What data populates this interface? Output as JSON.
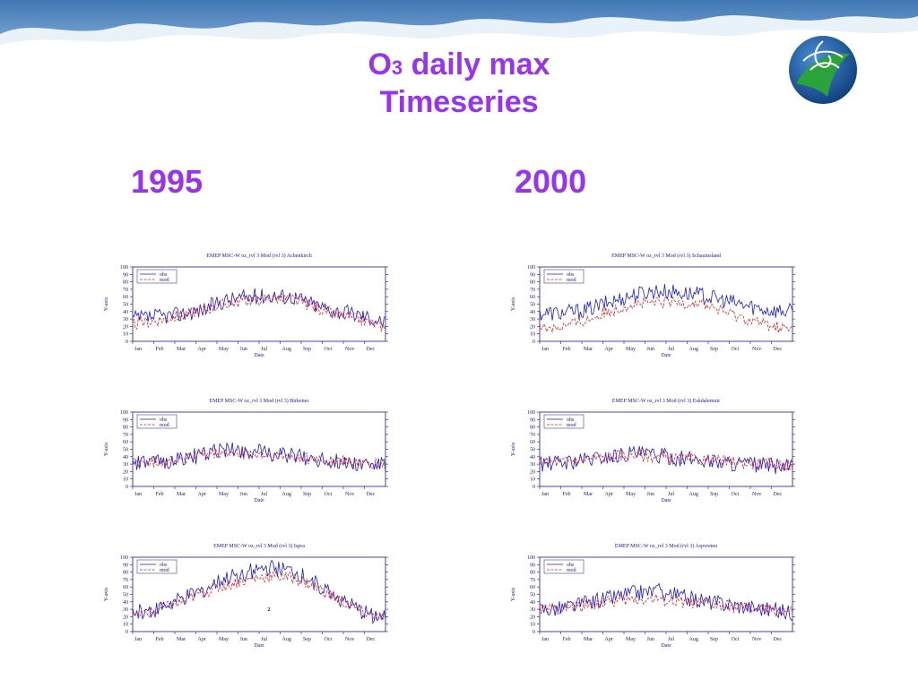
{
  "title": {
    "main": "O",
    "sub": "3",
    "rest": " daily max",
    "line2": "Timeseries"
  },
  "years": {
    "left": "1995",
    "right": "2000"
  },
  "colors": {
    "title": "#9933ee",
    "obs": "#1a1acc",
    "mod": "#dd2222",
    "axis": "#1a1a8c"
  },
  "chart_common": {
    "ylabel": "Y-axis",
    "xlabel": "Date",
    "months": [
      "Jan",
      "Feb",
      "Mar",
      "Apr",
      "May",
      "Jun",
      "Jul",
      "Aug",
      "Sep",
      "Oct",
      "Nov",
      "Dec"
    ],
    "yticks": [
      0,
      10,
      20,
      30,
      40,
      50,
      60,
      70,
      80,
      90,
      100
    ],
    "legend": [
      "obs",
      "mod"
    ]
  },
  "chart_data": [
    {
      "type": "line",
      "title": "EMEP MSC-W oz_rvl 3 Mod (rvl 3) Achenkirch",
      "xlabel": "Date",
      "ylabel": "Y-axis",
      "ylim": [
        0,
        100
      ],
      "x": [
        "Jan",
        "Feb",
        "Mar",
        "Apr",
        "May",
        "Jun",
        "Jul",
        "Aug",
        "Sep",
        "Oct",
        "Nov",
        "Dec"
      ],
      "series": [
        {
          "name": "obs",
          "values": [
            30,
            33,
            36,
            42,
            55,
            60,
            62,
            60,
            48,
            40,
            35,
            25
          ]
        },
        {
          "name": "mod",
          "values": [
            22,
            28,
            34,
            42,
            50,
            55,
            58,
            56,
            45,
            35,
            28,
            18
          ]
        }
      ]
    },
    {
      "type": "line",
      "title": "EMEP MSC-W oz_rvl 3 Mod (rvl 3) Schauinsland",
      "xlabel": "Date",
      "ylabel": "Y-axis",
      "ylim": [
        0,
        100
      ],
      "x": [
        "Jan",
        "Feb",
        "Mar",
        "Apr",
        "May",
        "Jun",
        "Jul",
        "Aug",
        "Sep",
        "Oct",
        "Nov",
        "Dec"
      ],
      "series": [
        {
          "name": "obs",
          "values": [
            38,
            38,
            42,
            52,
            62,
            68,
            66,
            62,
            55,
            48,
            42,
            40
          ]
        },
        {
          "name": "mod",
          "values": [
            18,
            20,
            28,
            40,
            50,
            52,
            52,
            52,
            40,
            30,
            22,
            15
          ]
        }
      ]
    },
    {
      "type": "line",
      "title": "EMEP MSC-W oz_rvl 3 Mod (rvl 3) Birkenes",
      "xlabel": "Date",
      "ylabel": "Y-axis",
      "ylim": [
        0,
        100
      ],
      "x": [
        "Jan",
        "Feb",
        "Mar",
        "Apr",
        "May",
        "Jun",
        "Jul",
        "Aug",
        "Sep",
        "Oct",
        "Nov",
        "Dec"
      ],
      "series": [
        {
          "name": "obs",
          "values": [
            30,
            32,
            37,
            42,
            50,
            48,
            44,
            42,
            36,
            33,
            30,
            28
          ]
        },
        {
          "name": "mod",
          "values": [
            32,
            33,
            37,
            42,
            45,
            43,
            40,
            40,
            36,
            34,
            31,
            29
          ]
        }
      ]
    },
    {
      "type": "line",
      "title": "EMEP MSC-W oz_rvl 3 Mod (rvl 3) Eskdalemuir",
      "xlabel": "Date",
      "ylabel": "Y-axis",
      "ylim": [
        0,
        100
      ],
      "x": [
        "Jan",
        "Feb",
        "Mar",
        "Apr",
        "May",
        "Jun",
        "Jul",
        "Aug",
        "Sep",
        "Oct",
        "Nov",
        "Dec"
      ],
      "series": [
        {
          "name": "obs",
          "values": [
            30,
            32,
            36,
            40,
            45,
            42,
            38,
            36,
            32,
            30,
            28,
            26
          ]
        },
        {
          "name": "mod",
          "values": [
            32,
            33,
            37,
            40,
            43,
            40,
            37,
            36,
            34,
            31,
            30,
            28
          ]
        }
      ]
    },
    {
      "type": "line",
      "title": "EMEP MSC-W oz_rvl 3 Mod (rvl 3) Ispra",
      "xlabel": "Date",
      "ylabel": "Y-axis",
      "ylim": [
        0,
        100
      ],
      "x": [
        "Jan",
        "Feb",
        "Mar",
        "Apr",
        "May",
        "Jun",
        "Jul",
        "Aug",
        "Sep",
        "Oct",
        "Nov",
        "Dec"
      ],
      "annotation": "2",
      "series": [
        {
          "name": "obs",
          "values": [
            25,
            30,
            42,
            55,
            70,
            80,
            85,
            80,
            65,
            45,
            25,
            18
          ]
        },
        {
          "name": "mod",
          "values": [
            20,
            28,
            38,
            52,
            62,
            70,
            75,
            72,
            60,
            42,
            26,
            18
          ]
        }
      ]
    },
    {
      "type": "line",
      "title": "EMEP MSC-W oz_rvl 3 Mod (rvl 3) Aspvreten",
      "xlabel": "Date",
      "ylabel": "Y-axis",
      "ylim": [
        0,
        100
      ],
      "x": [
        "Jan",
        "Feb",
        "Mar",
        "Apr",
        "May",
        "Jun",
        "Jul",
        "Aug",
        "Sep",
        "Oct",
        "Nov",
        "Dec"
      ],
      "series": [
        {
          "name": "obs",
          "values": [
            30,
            32,
            38,
            45,
            52,
            55,
            48,
            42,
            38,
            34,
            30,
            26
          ]
        },
        {
          "name": "mod",
          "values": [
            30,
            31,
            35,
            40,
            43,
            44,
            40,
            38,
            34,
            32,
            29,
            26
          ]
        }
      ]
    }
  ]
}
